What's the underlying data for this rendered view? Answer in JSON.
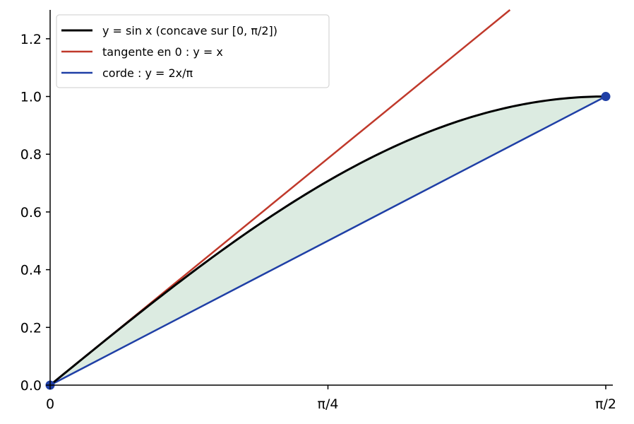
{
  "chart_data": {
    "type": "line",
    "title": "",
    "xlabel": "",
    "ylabel": "",
    "xlim": [
      0,
      1.5708
    ],
    "ylim": [
      0,
      1.3
    ],
    "grid": false,
    "legend_position": "top-left",
    "x_ticks": [
      {
        "value": 0,
        "label": "0"
      },
      {
        "value": 0.785398,
        "label": "π/4"
      },
      {
        "value": 1.570796,
        "label": "π/2"
      }
    ],
    "y_ticks": [
      {
        "value": 0.0,
        "label": "0.0"
      },
      {
        "value": 0.2,
        "label": "0.2"
      },
      {
        "value": 0.4,
        "label": "0.4"
      },
      {
        "value": 0.6,
        "label": "0.6"
      },
      {
        "value": 0.8,
        "label": "0.8"
      },
      {
        "value": 1.0,
        "label": "1.0"
      },
      {
        "value": 1.2,
        "label": "1.2"
      }
    ],
    "series": [
      {
        "name": "y = sin x (concave sur [0, π/2])",
        "color": "#000000",
        "x": [
          0,
          0.19635,
          0.392699,
          0.589049,
          0.785398,
          0.981748,
          1.178097,
          1.374447,
          1.570796
        ],
        "y": [
          0,
          0.19509,
          0.382683,
          0.55557,
          0.707107,
          0.83147,
          0.92388,
          0.980785,
          1.0
        ]
      },
      {
        "name": "tangente en 0 : y = x",
        "color": "#c0392b",
        "x": [
          0,
          1.3
        ],
        "y": [
          0,
          1.3
        ]
      },
      {
        "name": "corde : y = 2x/π",
        "color": "#1f3fa6",
        "x": [
          0,
          1.570796
        ],
        "y": [
          0,
          1.0
        ]
      }
    ],
    "fill_between": {
      "color": "#dcebe1"
    },
    "markers": [
      {
        "x": 0,
        "y": 0,
        "color": "#1f3fa6"
      },
      {
        "x": 1.570796,
        "y": 1.0,
        "color": "#1f3fa6"
      }
    ]
  }
}
